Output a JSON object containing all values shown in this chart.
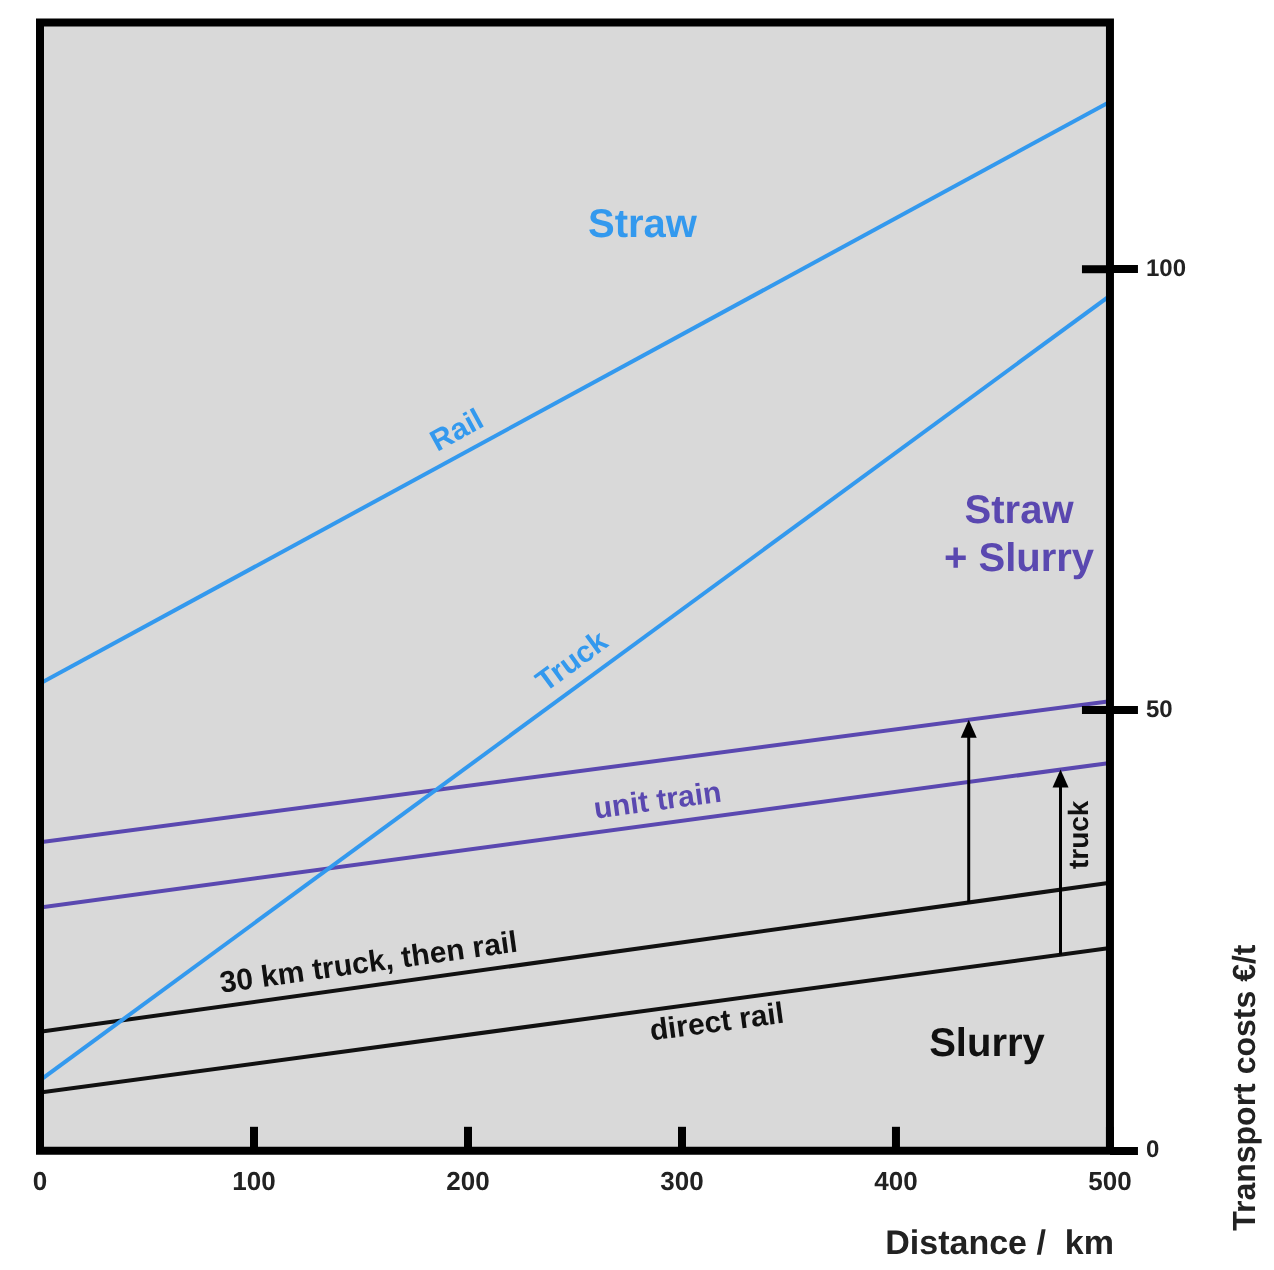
{
  "chart_data": {
    "type": "line",
    "xlabel": "Distance /  km",
    "ylabel": "Transport costs €/t",
    "x": [
      0,
      500
    ],
    "xlim": [
      0,
      500
    ],
    "xticks": [
      0,
      100,
      200,
      300,
      400,
      500
    ],
    "ylim": [
      0,
      128
    ],
    "yticks": [
      0,
      50,
      100
    ],
    "grid": false,
    "legend": false,
    "marker": "none",
    "line_style": "solid",
    "series": [
      {
        "name": "Rail",
        "color": "#3399ee",
        "values": [
          53,
          119
        ]
      },
      {
        "name": "Truck",
        "color": "#3399ee",
        "values": [
          8,
          97
        ]
      },
      {
        "color": "#5a48b0",
        "values": [
          35,
          51
        ]
      },
      {
        "name": "unit train",
        "color": "#5a48b0",
        "values": [
          27.6,
          44
        ]
      },
      {
        "name": "30 km truck, then rail",
        "color": "#111111",
        "values": [
          13.5,
          30.4
        ]
      },
      {
        "name": "direct rail",
        "color": "#111111",
        "values": [
          6.6,
          23
        ]
      }
    ],
    "annotations": [
      "Straw",
      "Straw\n+ Slurry",
      "Slurry",
      "truck"
    ]
  }
}
